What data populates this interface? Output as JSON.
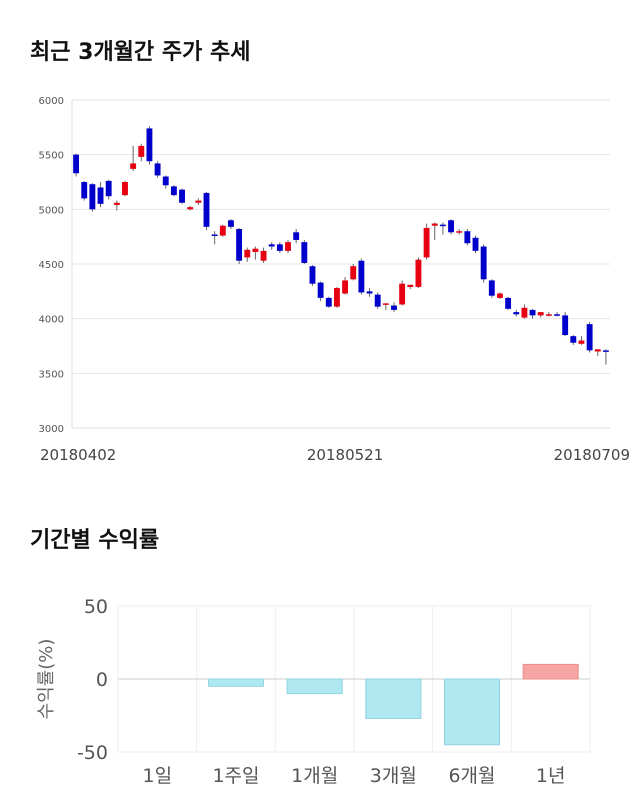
{
  "sections": {
    "price_title": "최근 3개월간 주가 추세",
    "returns_title": "기간별 수익률"
  },
  "chart_data": [
    {
      "type": "candlestick",
      "title": "최근 3개월간 주가 추세",
      "ylim": [
        3000,
        6000
      ],
      "yticks": [
        3000,
        3500,
        4000,
        4500,
        5000,
        5500,
        6000
      ],
      "x_tick_labels": [
        "20180402",
        "20180521",
        "20180709"
      ],
      "x_tick_indices": [
        0,
        33,
        65
      ],
      "grid": true,
      "colors": {
        "up": "#e60012",
        "down": "#0000cc",
        "wick": "#666666"
      },
      "candles": [
        [
          5500,
          5510,
          5300,
          5330
        ],
        [
          5250,
          5260,
          5080,
          5100
        ],
        [
          5230,
          5240,
          4980,
          5000
        ],
        [
          5200,
          5250,
          5020,
          5050
        ],
        [
          5260,
          5270,
          5090,
          5120
        ],
        [
          5040,
          5080,
          4990,
          5060
        ],
        [
          5130,
          5260,
          5120,
          5250
        ],
        [
          5370,
          5580,
          5350,
          5420
        ],
        [
          5480,
          5600,
          5440,
          5580
        ],
        [
          5740,
          5760,
          5410,
          5440
        ],
        [
          5420,
          5440,
          5290,
          5310
        ],
        [
          5300,
          5310,
          5190,
          5220
        ],
        [
          5210,
          5220,
          5120,
          5130
        ],
        [
          5180,
          5190,
          5050,
          5060
        ],
        [
          5000,
          5030,
          4990,
          5020
        ],
        [
          5060,
          5100,
          5040,
          5080
        ],
        [
          5150,
          5160,
          4810,
          4840
        ],
        [
          4770,
          4800,
          4680,
          4760
        ],
        [
          4760,
          4860,
          4750,
          4850
        ],
        [
          4900,
          4910,
          4820,
          4840
        ],
        [
          4820,
          4830,
          4500,
          4530
        ],
        [
          4560,
          4650,
          4520,
          4630
        ],
        [
          4610,
          4660,
          4540,
          4640
        ],
        [
          4530,
          4650,
          4510,
          4620
        ],
        [
          4680,
          4700,
          4630,
          4660
        ],
        [
          4680,
          4700,
          4600,
          4620
        ],
        [
          4620,
          4720,
          4600,
          4700
        ],
        [
          4790,
          4820,
          4690,
          4720
        ],
        [
          4700,
          4720,
          4500,
          4510
        ],
        [
          4480,
          4490,
          4300,
          4320
        ],
        [
          4330,
          4340,
          4160,
          4190
        ],
        [
          4190,
          4200,
          4100,
          4110
        ],
        [
          4110,
          4290,
          4100,
          4280
        ],
        [
          4230,
          4380,
          4220,
          4350
        ],
        [
          4360,
          4500,
          4350,
          4480
        ],
        [
          4530,
          4550,
          4220,
          4240
        ],
        [
          4250,
          4280,
          4200,
          4230
        ],
        [
          4220,
          4240,
          4090,
          4110
        ],
        [
          4130,
          4140,
          4080,
          4140
        ],
        [
          4120,
          4150,
          4060,
          4080
        ],
        [
          4130,
          4350,
          4120,
          4320
        ],
        [
          4290,
          4300,
          4270,
          4310
        ],
        [
          4290,
          4560,
          4280,
          4540
        ],
        [
          4560,
          4870,
          4540,
          4830
        ],
        [
          4850,
          4880,
          4720,
          4870
        ],
        [
          4860,
          4880,
          4770,
          4850
        ],
        [
          4900,
          4910,
          4770,
          4790
        ],
        [
          4800,
          4820,
          4770,
          4800
        ],
        [
          4800,
          4820,
          4670,
          4690
        ],
        [
          4740,
          4760,
          4600,
          4620
        ],
        [
          4660,
          4680,
          4330,
          4360
        ],
        [
          4350,
          4360,
          4190,
          4210
        ],
        [
          4190,
          4240,
          4180,
          4230
        ],
        [
          4190,
          4200,
          4080,
          4090
        ],
        [
          4060,
          4080,
          4020,
          4040
        ],
        [
          4010,
          4130,
          4000,
          4100
        ],
        [
          4080,
          4090,
          4000,
          4030
        ],
        [
          4030,
          4060,
          4010,
          4060
        ],
        [
          4040,
          4060,
          4020,
          4040
        ],
        [
          4040,
          4060,
          4020,
          4030
        ],
        [
          4030,
          4060,
          3840,
          3850
        ],
        [
          3840,
          3850,
          3760,
          3780
        ],
        [
          3770,
          3840,
          3760,
          3800
        ],
        [
          3950,
          3970,
          3690,
          3710
        ],
        [
          3700,
          3720,
          3660,
          3720
        ],
        [
          3710,
          3720,
          3580,
          3700
        ]
      ]
    },
    {
      "type": "bar",
      "title": "기간별 수익률",
      "ylabel": "수익률(%)",
      "ylim": [
        -50,
        50
      ],
      "yticks": [
        -50,
        0,
        50
      ],
      "categories": [
        "1일",
        "1주일",
        "1개월",
        "3개월",
        "6개월",
        "1년"
      ],
      "values": [
        0,
        -5,
        -10,
        -27,
        -45,
        10
      ],
      "colors": {
        "negative": "#b0e8f2",
        "negative_edge": "#8fd3e2",
        "positive": "#f6a5a5",
        "positive_edge": "#ee8e8e"
      },
      "grid": true
    }
  ]
}
